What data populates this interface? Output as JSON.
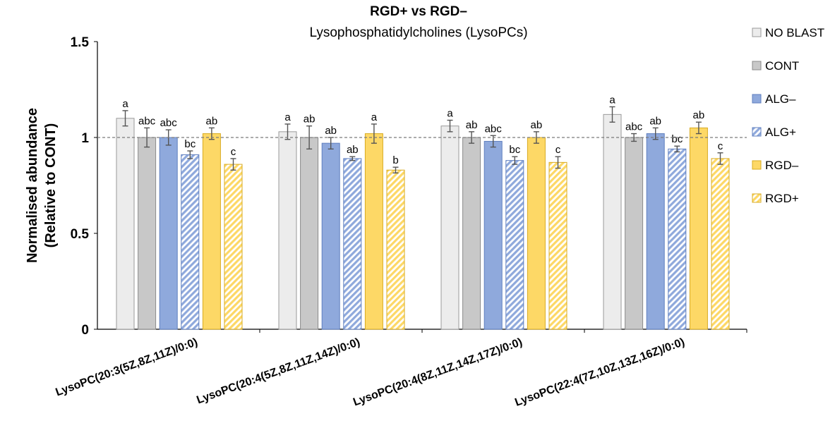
{
  "chart_data": {
    "type": "bar",
    "title": "RGD+ vs RGD–",
    "subtitle": "Lysophosphatidylcholines (LysoPCs)",
    "ylabel_line1": "Normalised abundance",
    "ylabel_line2": "(Relative to CONT)",
    "ylim": [
      0,
      1.5
    ],
    "yticks": [
      {
        "value": 0,
        "label": "0"
      },
      {
        "value": 0.5,
        "label": "0.5"
      },
      {
        "value": 1,
        "label": "1"
      },
      {
        "value": 1.5,
        "label": "1.5"
      }
    ],
    "reference_line": 1.0,
    "legend_position": "right",
    "categories": [
      "LysoPC(20:3(5Z,8Z,11Z)/0:0)",
      "LysoPC(20:4(5Z,8Z,11Z,14Z)/0:0)",
      "LysoPC(20:4(8Z,11Z,14Z,17Z)/0:0)",
      "LysoPC(22:4(7Z,10Z,13Z,16Z)/0:0)"
    ],
    "series": [
      {
        "name": "NO BLAST",
        "color": "#ececec",
        "stroke": "#9a9a9a",
        "hatch": false,
        "values": [
          1.1,
          1.03,
          1.06,
          1.12
        ],
        "errors": [
          0.04,
          0.04,
          0.03,
          0.04
        ],
        "labels": [
          "a",
          "a",
          "a",
          "a"
        ]
      },
      {
        "name": "CONT",
        "color": "#c8c8c8",
        "stroke": "#8a8a8a",
        "hatch": false,
        "values": [
          1.0,
          1.0,
          1.0,
          1.0
        ],
        "errors": [
          0.05,
          0.06,
          0.03,
          0.02
        ],
        "labels": [
          "abc",
          "ab",
          "ab",
          "abc"
        ]
      },
      {
        "name": "ALG–",
        "color": "#8fa9dc",
        "stroke": "#5f7fbf",
        "hatch": false,
        "values": [
          1.0,
          0.97,
          0.98,
          1.02
        ],
        "errors": [
          0.04,
          0.03,
          0.03,
          0.03
        ],
        "labels": [
          "abc",
          "ab",
          "abc",
          "ab"
        ]
      },
      {
        "name": "ALG+",
        "color": "#8fa9dc",
        "stroke": "#5f7fbf",
        "hatch": true,
        "values": [
          0.91,
          0.89,
          0.88,
          0.94
        ],
        "errors": [
          0.02,
          0.01,
          0.02,
          0.015
        ],
        "labels": [
          "bc",
          "ab",
          "bc",
          "bc"
        ]
      },
      {
        "name": "RGD–",
        "color": "#fdd866",
        "stroke": "#d8ab22",
        "hatch": false,
        "values": [
          1.02,
          1.02,
          1.0,
          1.05
        ],
        "errors": [
          0.03,
          0.05,
          0.03,
          0.03
        ],
        "labels": [
          "ab",
          "a",
          "ab",
          "ab"
        ]
      },
      {
        "name": "RGD+",
        "color": "#fdd866",
        "stroke": "#d8ab22",
        "hatch": true,
        "values": [
          0.86,
          0.83,
          0.87,
          0.89
        ],
        "errors": [
          0.03,
          0.015,
          0.03,
          0.03
        ],
        "labels": [
          "c",
          "b",
          "c",
          "c"
        ]
      }
    ]
  }
}
